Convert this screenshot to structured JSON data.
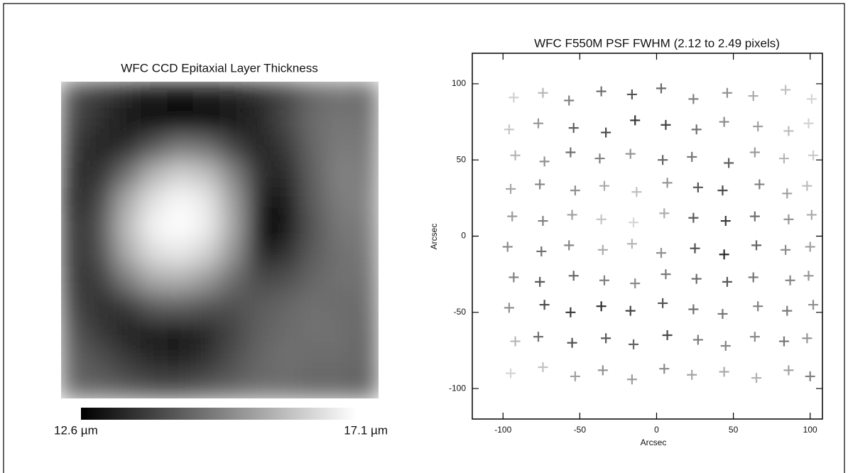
{
  "chart_data": [
    {
      "type": "heatmap",
      "title": "WFC CCD Epitaxial Layer Thickness",
      "z": [
        [
          14.0,
          13.6,
          13.3,
          13.0,
          12.9,
          13.0,
          13.1,
          13.4,
          13.8,
          14.4,
          14.6,
          14.5
        ],
        [
          13.8,
          13.4,
          13.0,
          12.9,
          12.8,
          12.9,
          13.0,
          13.3,
          13.9,
          14.5,
          14.7,
          14.6
        ],
        [
          13.6,
          13.2,
          13.4,
          14.2,
          14.8,
          14.6,
          13.8,
          13.2,
          13.6,
          14.4,
          14.8,
          14.7
        ],
        [
          13.4,
          13.5,
          14.6,
          15.8,
          16.3,
          16.0,
          14.9,
          13.4,
          13.3,
          14.3,
          14.9,
          14.8
        ],
        [
          13.3,
          13.9,
          15.6,
          16.6,
          17.0,
          16.7,
          15.4,
          13.2,
          13.0,
          14.2,
          14.8,
          14.9
        ],
        [
          13.4,
          14.1,
          15.9,
          16.9,
          17.1,
          16.8,
          15.5,
          12.9,
          12.8,
          14.1,
          14.7,
          14.8
        ],
        [
          13.5,
          14.0,
          15.6,
          16.5,
          16.7,
          16.3,
          15.2,
          13.3,
          13.4,
          14.2,
          14.6,
          14.7
        ],
        [
          13.6,
          13.7,
          14.8,
          15.6,
          15.7,
          15.3,
          14.5,
          13.9,
          14.0,
          14.4,
          14.6,
          14.6
        ],
        [
          13.8,
          13.4,
          13.6,
          14.2,
          14.3,
          14.1,
          14.0,
          14.2,
          14.4,
          14.6,
          14.5,
          14.5
        ],
        [
          14.1,
          13.6,
          13.2,
          13.1,
          13.0,
          13.3,
          13.8,
          14.3,
          14.5,
          14.6,
          14.6,
          14.4
        ],
        [
          14.3,
          14.0,
          13.6,
          13.3,
          13.2,
          13.5,
          14.0,
          14.4,
          14.6,
          14.5,
          14.5,
          14.4
        ],
        [
          14.4,
          14.3,
          14.1,
          13.9,
          13.9,
          14.1,
          14.3,
          14.5,
          14.5,
          14.4,
          14.4,
          14.3
        ]
      ],
      "zlim": [
        12.6,
        17.1
      ],
      "colorbar_ticks": [
        {
          "value": 12.6,
          "label": "12.6 µm"
        },
        {
          "value": 17.1,
          "label": "17.1 µm"
        }
      ]
    },
    {
      "type": "scatter",
      "title": "WFC F550M PSF FWHM (2.12 to 2.49 pixels)",
      "x_label": "Arcsec",
      "y_label": "Arcsec",
      "xlim": [
        -120,
        108
      ],
      "ylim": [
        -120,
        120
      ],
      "xticks": [
        -100,
        -50,
        0,
        50,
        100
      ],
      "yticks": [
        -100,
        -50,
        0,
        50,
        100
      ],
      "zlim": [
        2.12,
        2.49
      ],
      "x": [
        -93,
        -74,
        -57,
        -36,
        -16,
        3,
        24,
        46,
        63,
        84,
        101,
        -96,
        -77,
        -54,
        -33,
        -14,
        6,
        26,
        44,
        66,
        86,
        99,
        -92,
        -73,
        -56,
        -37,
        -17,
        4,
        23,
        47,
        64,
        83,
        102,
        -95,
        -76,
        -53,
        -34,
        -13,
        7,
        27,
        43,
        67,
        85,
        98,
        -94,
        -74,
        -55,
        -36,
        -15,
        5,
        24,
        45,
        64,
        86,
        101,
        -97,
        -75,
        -57,
        -35,
        -16,
        3,
        25,
        44,
        65,
        84,
        100,
        -93,
        -76,
        -54,
        -34,
        -14,
        6,
        26,
        46,
        63,
        87,
        99,
        -96,
        -73,
        -56,
        -36,
        -17,
        4,
        24,
        43,
        66,
        85,
        102,
        -92,
        -77,
        -55,
        -33,
        -15,
        7,
        27,
        45,
        64,
        83,
        98,
        -95,
        -74,
        -53,
        -35,
        -16,
        5,
        23,
        44,
        65,
        86,
        100
      ],
      "y": [
        91,
        94,
        89,
        95,
        93,
        97,
        90,
        94,
        92,
        96,
        90,
        70,
        74,
        71,
        68,
        76,
        73,
        70,
        75,
        72,
        69,
        74,
        53,
        49,
        55,
        51,
        54,
        50,
        52,
        48,
        55,
        51,
        53,
        31,
        34,
        30,
        33,
        29,
        35,
        32,
        30,
        34,
        28,
        33,
        13,
        10,
        14,
        11,
        9,
        15,
        12,
        10,
        13,
        11,
        14,
        -7,
        -10,
        -6,
        -9,
        -5,
        -11,
        -8,
        -12,
        -6,
        -9,
        -7,
        -27,
        -30,
        -26,
        -29,
        -31,
        -25,
        -28,
        -30,
        -27,
        -29,
        -26,
        -47,
        -45,
        -50,
        -46,
        -49,
        -44,
        -48,
        -51,
        -46,
        -49,
        -45,
        -69,
        -66,
        -70,
        -67,
        -71,
        -65,
        -68,
        -72,
        -66,
        -69,
        -67,
        -90,
        -86,
        -92,
        -88,
        -94,
        -87,
        -91,
        -89,
        -93,
        -88,
        -92
      ],
      "values": [
        2.15,
        2.2,
        2.3,
        2.33,
        2.38,
        2.34,
        2.3,
        2.27,
        2.22,
        2.18,
        2.14,
        2.17,
        2.26,
        2.36,
        2.4,
        2.44,
        2.41,
        2.33,
        2.28,
        2.24,
        2.19,
        2.15,
        2.2,
        2.27,
        2.33,
        2.3,
        2.26,
        2.35,
        2.32,
        2.36,
        2.25,
        2.2,
        2.16,
        2.23,
        2.29,
        2.27,
        2.22,
        2.18,
        2.26,
        2.38,
        2.4,
        2.3,
        2.24,
        2.19,
        2.25,
        2.3,
        2.24,
        2.17,
        2.14,
        2.22,
        2.37,
        2.43,
        2.33,
        2.26,
        2.22,
        2.28,
        2.33,
        2.29,
        2.22,
        2.2,
        2.27,
        2.39,
        2.46,
        2.35,
        2.28,
        2.24,
        2.3,
        2.37,
        2.35,
        2.3,
        2.28,
        2.31,
        2.34,
        2.37,
        2.32,
        2.29,
        2.26,
        2.27,
        2.4,
        2.43,
        2.45,
        2.41,
        2.38,
        2.33,
        2.32,
        2.3,
        2.31,
        2.27,
        2.2,
        2.33,
        2.39,
        2.37,
        2.35,
        2.4,
        2.31,
        2.29,
        2.28,
        2.32,
        2.26,
        2.14,
        2.18,
        2.24,
        2.27,
        2.25,
        2.28,
        2.23,
        2.22,
        2.21,
        2.24,
        2.3
      ]
    }
  ]
}
